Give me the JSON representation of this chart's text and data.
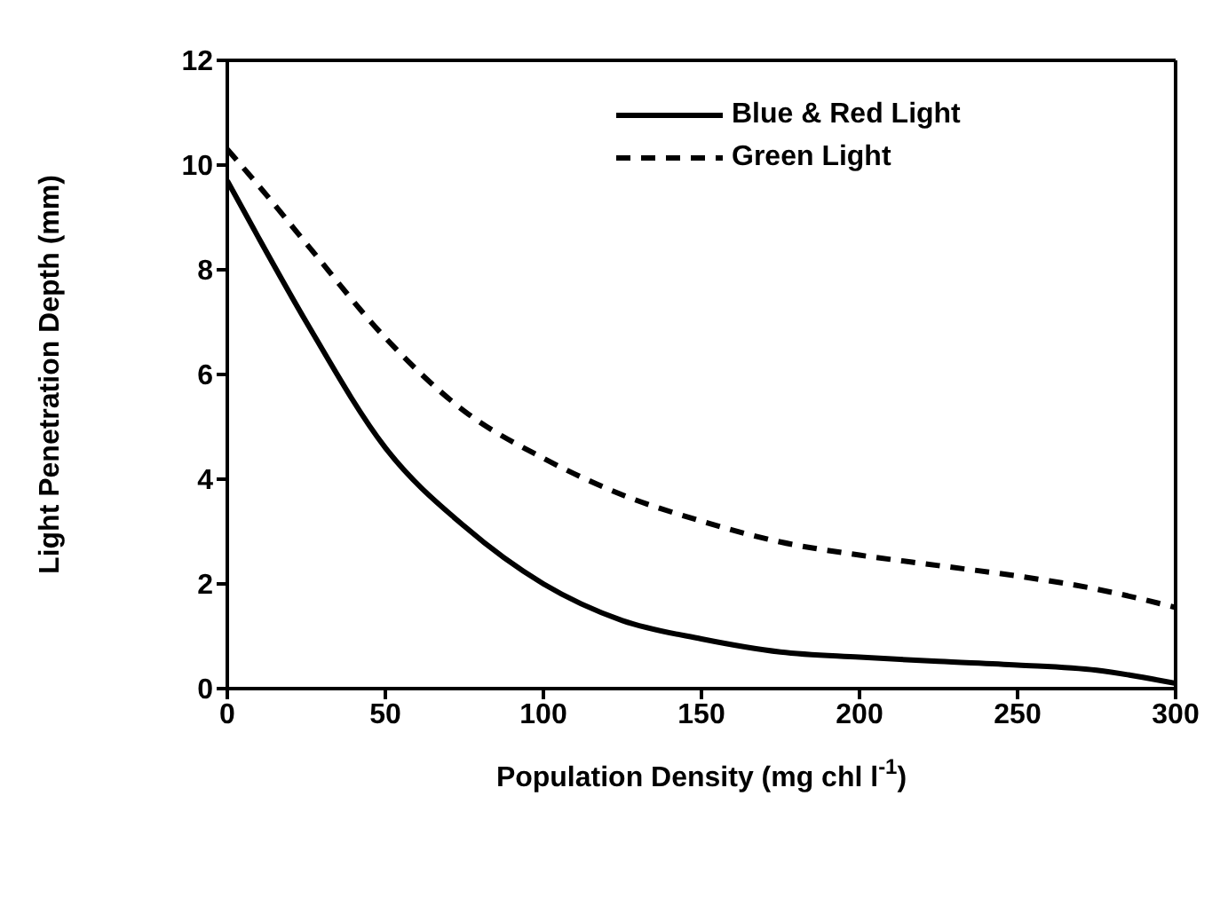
{
  "chart_data": {
    "type": "line",
    "xlabel": "Population Density (mg chl l$^{-1}$)",
    "ylabel": "Light Penetration Depth (mm)",
    "xlim": [
      0,
      300
    ],
    "xticks": [
      0,
      50,
      100,
      150,
      200,
      250,
      300
    ],
    "ylim": [
      0,
      12
    ],
    "yticks": [
      0,
      2,
      4,
      6,
      8,
      10,
      12
    ],
    "x": [
      0,
      10,
      25,
      50,
      75,
      100,
      125,
      150,
      175,
      200,
      225,
      250,
      275,
      300
    ],
    "series": [
      {
        "name": "Blue & Red Light",
        "color": "#000000",
        "line_style": "solid",
        "values": [
          9.7,
          8.6,
          7.0,
          4.6,
          3.1,
          2.0,
          1.3,
          0.95,
          0.7,
          0.6,
          0.52,
          0.45,
          0.35,
          0.1
        ]
      },
      {
        "name": "Green Light",
        "color": "#000000",
        "line_style": "dashed",
        "values": [
          10.3,
          9.6,
          8.5,
          6.7,
          5.3,
          4.4,
          3.7,
          3.2,
          2.8,
          2.55,
          2.35,
          2.15,
          1.9,
          1.55
        ]
      }
    ],
    "legend": "top right",
    "grid": false,
    "marker": "none"
  }
}
